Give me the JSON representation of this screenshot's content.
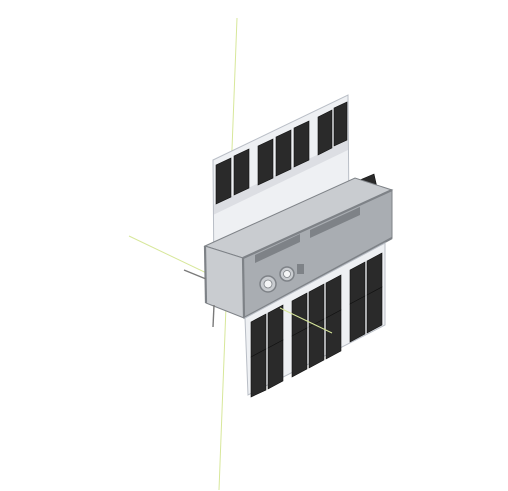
{
  "scene": {
    "background_color": "#ffffff",
    "subject": "cubesat-3d-render",
    "colors": {
      "solar_cell": "#2a2a2a",
      "solar_cell_edge": "#111111",
      "panel_substrate": "#eef0f3",
      "panel_edge": "#b9bec6",
      "chassis_light": "#c9ccd0",
      "chassis_mid": "#a9adb2",
      "chassis_dark": "#7e8287",
      "axis_line": "#d7e79a",
      "antenna": "#7a7a7a"
    },
    "icons": {
      "solar-array-top": "solar-panel",
      "solar-array-bottom": "solar-panel",
      "chassis": "cube-structure",
      "camera-lens": "lens"
    }
  }
}
